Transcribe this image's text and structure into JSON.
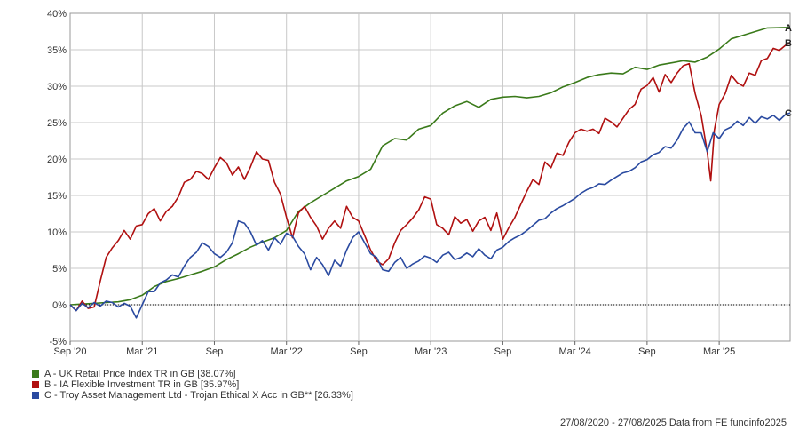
{
  "chart_data": {
    "type": "line",
    "ylim": [
      -5,
      40
    ],
    "y_ticks": [
      "40%",
      "35%",
      "30%",
      "25%",
      "20%",
      "15%",
      "10%",
      "5%",
      "0%",
      "-5%"
    ],
    "x_ticks": [
      "Sep '20",
      "Mar '21",
      "Sep",
      "Mar '22",
      "Sep",
      "Mar '23",
      "Sep",
      "Mar '24",
      "Sep",
      "Mar '25"
    ],
    "x_tick_months": [
      0,
      6,
      12,
      18,
      24,
      30,
      36,
      42,
      48,
      54
    ],
    "x_range_months": [
      0,
      59.9
    ],
    "grid": true,
    "zero_line": true,
    "series": [
      {
        "key": "A",
        "name": "A - UK Retail Price Index TR in GB [38.07%]",
        "color": "#3a7a1a",
        "points": [
          [
            0,
            0
          ],
          [
            1,
            0.1
          ],
          [
            2,
            0.2
          ],
          [
            3,
            0.3
          ],
          [
            4,
            0.4
          ],
          [
            5,
            0.7
          ],
          [
            6,
            1.3
          ],
          [
            7,
            2.5
          ],
          [
            8,
            3.2
          ],
          [
            9,
            3.6
          ],
          [
            10,
            4.1
          ],
          [
            11,
            4.6
          ],
          [
            12,
            5.2
          ],
          [
            13,
            6.2
          ],
          [
            14,
            7.0
          ],
          [
            15,
            7.9
          ],
          [
            16,
            8.6
          ],
          [
            17,
            9.2
          ],
          [
            18,
            10.2
          ],
          [
            19,
            12.8
          ],
          [
            20,
            14.0
          ],
          [
            21,
            15.0
          ],
          [
            22,
            16.0
          ],
          [
            23,
            17.0
          ],
          [
            24,
            17.6
          ],
          [
            25,
            18.6
          ],
          [
            26,
            21.8
          ],
          [
            27,
            22.8
          ],
          [
            28,
            22.6
          ],
          [
            29,
            24.1
          ],
          [
            30,
            24.6
          ],
          [
            31,
            26.3
          ],
          [
            32,
            27.3
          ],
          [
            33,
            27.9
          ],
          [
            34,
            27.1
          ],
          [
            35,
            28.2
          ],
          [
            36,
            28.5
          ],
          [
            37,
            28.6
          ],
          [
            38,
            28.4
          ],
          [
            39,
            28.6
          ],
          [
            40,
            29.1
          ],
          [
            41,
            29.9
          ],
          [
            42,
            30.5
          ],
          [
            43,
            31.2
          ],
          [
            44,
            31.6
          ],
          [
            45,
            31.8
          ],
          [
            46,
            31.7
          ],
          [
            47,
            32.6
          ],
          [
            48,
            32.3
          ],
          [
            49,
            32.9
          ],
          [
            50,
            33.2
          ],
          [
            51,
            33.5
          ],
          [
            52,
            33.3
          ],
          [
            53,
            34.0
          ],
          [
            54,
            35.1
          ],
          [
            55,
            36.5
          ],
          [
            56,
            37.0
          ],
          [
            57,
            37.5
          ],
          [
            58,
            38.0
          ],
          [
            59.9,
            38.07
          ]
        ]
      },
      {
        "key": "B",
        "name": "B - IA Flexible Investment TR in GB [35.97%]",
        "color": "#b01010",
        "points": [
          [
            0,
            0
          ],
          [
            0.5,
            -0.8
          ],
          [
            1,
            0.5
          ],
          [
            1.5,
            -0.5
          ],
          [
            2,
            -0.3
          ],
          [
            2.5,
            3.2
          ],
          [
            3,
            6.5
          ],
          [
            3.5,
            7.8
          ],
          [
            4,
            8.8
          ],
          [
            4.5,
            10.2
          ],
          [
            5,
            9.0
          ],
          [
            5.5,
            10.8
          ],
          [
            6,
            11.0
          ],
          [
            6.5,
            12.5
          ],
          [
            7,
            13.2
          ],
          [
            7.5,
            11.5
          ],
          [
            8,
            12.8
          ],
          [
            8.5,
            13.5
          ],
          [
            9,
            14.8
          ],
          [
            9.5,
            16.8
          ],
          [
            10,
            17.2
          ],
          [
            10.5,
            18.3
          ],
          [
            11,
            18.0
          ],
          [
            11.5,
            17.2
          ],
          [
            12,
            18.8
          ],
          [
            12.5,
            20.2
          ],
          [
            13,
            19.5
          ],
          [
            13.5,
            17.8
          ],
          [
            14,
            18.9
          ],
          [
            14.5,
            17.2
          ],
          [
            15,
            18.9
          ],
          [
            15.5,
            21.0
          ],
          [
            16,
            20.0
          ],
          [
            16.5,
            19.8
          ],
          [
            17,
            16.8
          ],
          [
            17.5,
            15.2
          ],
          [
            18,
            12.0
          ],
          [
            18.5,
            9.2
          ],
          [
            19,
            12.6
          ],
          [
            19.5,
            13.5
          ],
          [
            20,
            12.0
          ],
          [
            20.5,
            10.8
          ],
          [
            21,
            9.0
          ],
          [
            21.5,
            10.5
          ],
          [
            22,
            11.5
          ],
          [
            22.5,
            10.5
          ],
          [
            23,
            13.5
          ],
          [
            23.5,
            12.0
          ],
          [
            24,
            11.5
          ],
          [
            24.5,
            9.5
          ],
          [
            25,
            7.5
          ],
          [
            25.5,
            6.0
          ],
          [
            26,
            5.5
          ],
          [
            26.5,
            6.3
          ],
          [
            27,
            8.5
          ],
          [
            27.5,
            10.2
          ],
          [
            28,
            11.0
          ],
          [
            28.5,
            11.9
          ],
          [
            29,
            13.0
          ],
          [
            29.5,
            14.8
          ],
          [
            30,
            14.5
          ],
          [
            30.5,
            11.0
          ],
          [
            31,
            10.5
          ],
          [
            31.5,
            9.6
          ],
          [
            32,
            12.1
          ],
          [
            32.5,
            11.2
          ],
          [
            33,
            11.7
          ],
          [
            33.5,
            10.1
          ],
          [
            34,
            11.5
          ],
          [
            34.5,
            12.0
          ],
          [
            35,
            10.2
          ],
          [
            35.5,
            12.6
          ],
          [
            36,
            9.0
          ],
          [
            36.5,
            10.6
          ],
          [
            37,
            12.0
          ],
          [
            37.5,
            13.8
          ],
          [
            38,
            15.6
          ],
          [
            38.5,
            17.2
          ],
          [
            39,
            16.5
          ],
          [
            39.5,
            19.6
          ],
          [
            40,
            18.8
          ],
          [
            40.5,
            20.8
          ],
          [
            41,
            20.5
          ],
          [
            41.5,
            22.3
          ],
          [
            42,
            23.6
          ],
          [
            42.5,
            24.1
          ],
          [
            43,
            23.8
          ],
          [
            43.5,
            24.1
          ],
          [
            44,
            23.5
          ],
          [
            44.5,
            25.6
          ],
          [
            45,
            25.1
          ],
          [
            45.5,
            24.4
          ],
          [
            46,
            25.6
          ],
          [
            46.5,
            26.8
          ],
          [
            47,
            27.5
          ],
          [
            47.5,
            29.6
          ],
          [
            48,
            30.1
          ],
          [
            48.5,
            31.2
          ],
          [
            49,
            29.2
          ],
          [
            49.5,
            31.6
          ],
          [
            50,
            30.5
          ],
          [
            50.5,
            31.8
          ],
          [
            51,
            32.8
          ],
          [
            51.5,
            33.1
          ],
          [
            52,
            29.0
          ],
          [
            52.5,
            26.0
          ],
          [
            53,
            21.0
          ],
          [
            53.3,
            17.0
          ],
          [
            53.6,
            24.0
          ],
          [
            54,
            27.5
          ],
          [
            54.5,
            29.0
          ],
          [
            55,
            31.5
          ],
          [
            55.5,
            30.5
          ],
          [
            56,
            30.0
          ],
          [
            56.5,
            31.8
          ],
          [
            57,
            31.5
          ],
          [
            57.5,
            33.5
          ],
          [
            58,
            33.8
          ],
          [
            58.5,
            35.2
          ],
          [
            59,
            34.9
          ],
          [
            59.5,
            35.6
          ],
          [
            59.9,
            35.97
          ]
        ]
      },
      {
        "key": "C",
        "name": "C - Troy Asset Management Ltd - Trojan Ethical X Acc in GB** [26.33%]",
        "color": "#2a4aa0",
        "points": [
          [
            0,
            0
          ],
          [
            0.5,
            -0.8
          ],
          [
            1,
            0.2
          ],
          [
            1.5,
            -0.4
          ],
          [
            2,
            0.3
          ],
          [
            2.5,
            -0.2
          ],
          [
            3,
            0.5
          ],
          [
            3.5,
            0.3
          ],
          [
            4,
            -0.3
          ],
          [
            4.5,
            0.2
          ],
          [
            5,
            -0.2
          ],
          [
            5.5,
            -1.8
          ],
          [
            6,
            0.0
          ],
          [
            6.5,
            1.8
          ],
          [
            7,
            1.8
          ],
          [
            7.5,
            3.0
          ],
          [
            8,
            3.4
          ],
          [
            8.5,
            4.1
          ],
          [
            9,
            3.8
          ],
          [
            9.5,
            5.3
          ],
          [
            10,
            6.5
          ],
          [
            10.5,
            7.2
          ],
          [
            11,
            8.5
          ],
          [
            11.5,
            8.0
          ],
          [
            12,
            7.0
          ],
          [
            12.5,
            6.5
          ],
          [
            13,
            7.2
          ],
          [
            13.5,
            8.5
          ],
          [
            14,
            11.5
          ],
          [
            14.5,
            11.2
          ],
          [
            15,
            10.0
          ],
          [
            15.5,
            8.2
          ],
          [
            16,
            8.8
          ],
          [
            16.5,
            7.5
          ],
          [
            17,
            9.2
          ],
          [
            17.5,
            8.3
          ],
          [
            18,
            9.8
          ],
          [
            18.5,
            9.4
          ],
          [
            19,
            8.0
          ],
          [
            19.5,
            7.0
          ],
          [
            20,
            4.8
          ],
          [
            20.5,
            6.5
          ],
          [
            21,
            5.5
          ],
          [
            21.5,
            4.0
          ],
          [
            22,
            6.1
          ],
          [
            22.5,
            5.3
          ],
          [
            23,
            7.5
          ],
          [
            23.5,
            9.2
          ],
          [
            24,
            10.0
          ],
          [
            24.5,
            8.5
          ],
          [
            25,
            7.0
          ],
          [
            25.5,
            6.5
          ],
          [
            26,
            4.8
          ],
          [
            26.5,
            4.6
          ],
          [
            27,
            5.8
          ],
          [
            27.5,
            6.5
          ],
          [
            28,
            5.0
          ],
          [
            28.5,
            5.6
          ],
          [
            29,
            6.0
          ],
          [
            29.5,
            6.7
          ],
          [
            30,
            6.4
          ],
          [
            30.5,
            5.8
          ],
          [
            31,
            6.8
          ],
          [
            31.5,
            7.2
          ],
          [
            32,
            6.2
          ],
          [
            32.5,
            6.5
          ],
          [
            33,
            7.1
          ],
          [
            33.5,
            6.6
          ],
          [
            34,
            7.7
          ],
          [
            34.5,
            6.8
          ],
          [
            35,
            6.3
          ],
          [
            35.5,
            7.5
          ],
          [
            36,
            7.9
          ],
          [
            36.5,
            8.7
          ],
          [
            37,
            9.2
          ],
          [
            37.5,
            9.6
          ],
          [
            38,
            10.2
          ],
          [
            38.5,
            10.9
          ],
          [
            39,
            11.6
          ],
          [
            39.5,
            11.8
          ],
          [
            40,
            12.6
          ],
          [
            40.5,
            13.2
          ],
          [
            41,
            13.6
          ],
          [
            41.5,
            14.1
          ],
          [
            42,
            14.6
          ],
          [
            42.5,
            15.3
          ],
          [
            43,
            15.8
          ],
          [
            43.5,
            16.1
          ],
          [
            44,
            16.6
          ],
          [
            44.5,
            16.5
          ],
          [
            45,
            17.1
          ],
          [
            45.5,
            17.6
          ],
          [
            46,
            18.1
          ],
          [
            46.5,
            18.3
          ],
          [
            47,
            18.8
          ],
          [
            47.5,
            19.6
          ],
          [
            48,
            19.9
          ],
          [
            48.5,
            20.6
          ],
          [
            49,
            20.9
          ],
          [
            49.5,
            21.7
          ],
          [
            50,
            21.5
          ],
          [
            50.5,
            22.6
          ],
          [
            51,
            24.2
          ],
          [
            51.5,
            25.1
          ],
          [
            52,
            23.6
          ],
          [
            52.5,
            23.6
          ],
          [
            53,
            21.0
          ],
          [
            53.5,
            23.6
          ],
          [
            54,
            22.8
          ],
          [
            54.5,
            24.0
          ],
          [
            55,
            24.4
          ],
          [
            55.5,
            25.2
          ],
          [
            56,
            24.6
          ],
          [
            56.5,
            25.7
          ],
          [
            57,
            24.9
          ],
          [
            57.5,
            25.8
          ],
          [
            58,
            25.5
          ],
          [
            58.5,
            26.0
          ],
          [
            59,
            25.3
          ],
          [
            59.5,
            26.1
          ],
          [
            59.9,
            26.33
          ]
        ]
      }
    ],
    "footer": "27/08/2020 - 27/08/2025 Data from FE fundinfo2025"
  }
}
